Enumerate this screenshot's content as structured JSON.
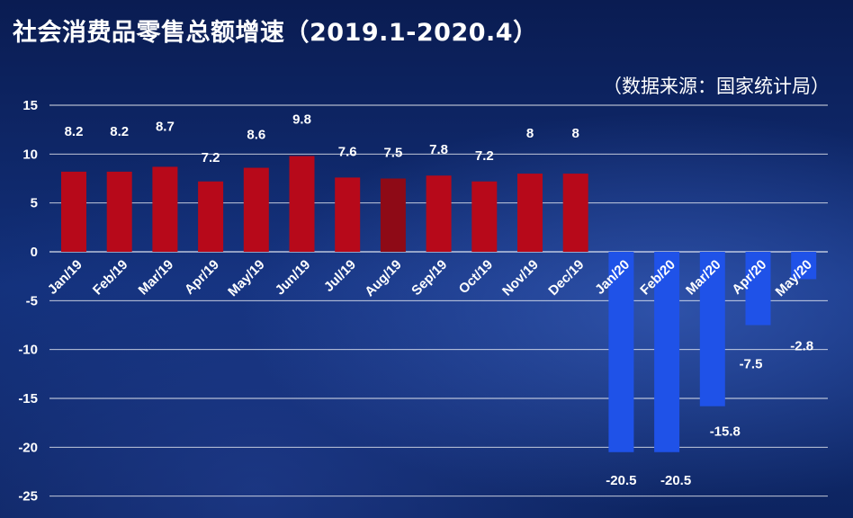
{
  "title": "社会消费品零售总额增速（2019.1-2020.4）",
  "source": "（数据来源：国家统计局）",
  "colors": {
    "positive": "#b7091a",
    "positive_highlight": "#8e0a16",
    "negative": "#1f52e8",
    "grid": "#ffffff",
    "text": "#ffffff"
  },
  "chart_data": {
    "type": "bar",
    "title": "社会消费品零售总额增速（2019.1-2020.4）",
    "xlabel": "",
    "ylabel": "",
    "ylim": [
      -25,
      15
    ],
    "yticks": [
      15,
      10,
      5,
      0,
      -5,
      -10,
      -15,
      -20,
      -25
    ],
    "grid": true,
    "categories": [
      "Jan/19",
      "Feb/19",
      "Mar/19",
      "Apr/19",
      "May/19",
      "Jun/19",
      "Jul/19",
      "Aug/19",
      "Sep/19",
      "Oct/19",
      "Nov/19",
      "Dec/19",
      "Jan/20",
      "Feb/20",
      "Mar/20",
      "Apr/20",
      "May/20"
    ],
    "values": [
      8.2,
      8.2,
      8.7,
      7.2,
      8.6,
      9.8,
      7.6,
      7.5,
      7.8,
      7.2,
      8,
      8,
      -20.5,
      -20.5,
      -15.8,
      -7.5,
      -2.8
    ],
    "labels": [
      "8.2",
      "8.2",
      "8.7",
      "7.2",
      "8.6",
      "9.8",
      "7.6",
      "7.5",
      "7.8",
      "7.2",
      "8",
      "8",
      "-20.5",
      "-20.5",
      "-15.8",
      "-7.5",
      "-2.8"
    ]
  }
}
